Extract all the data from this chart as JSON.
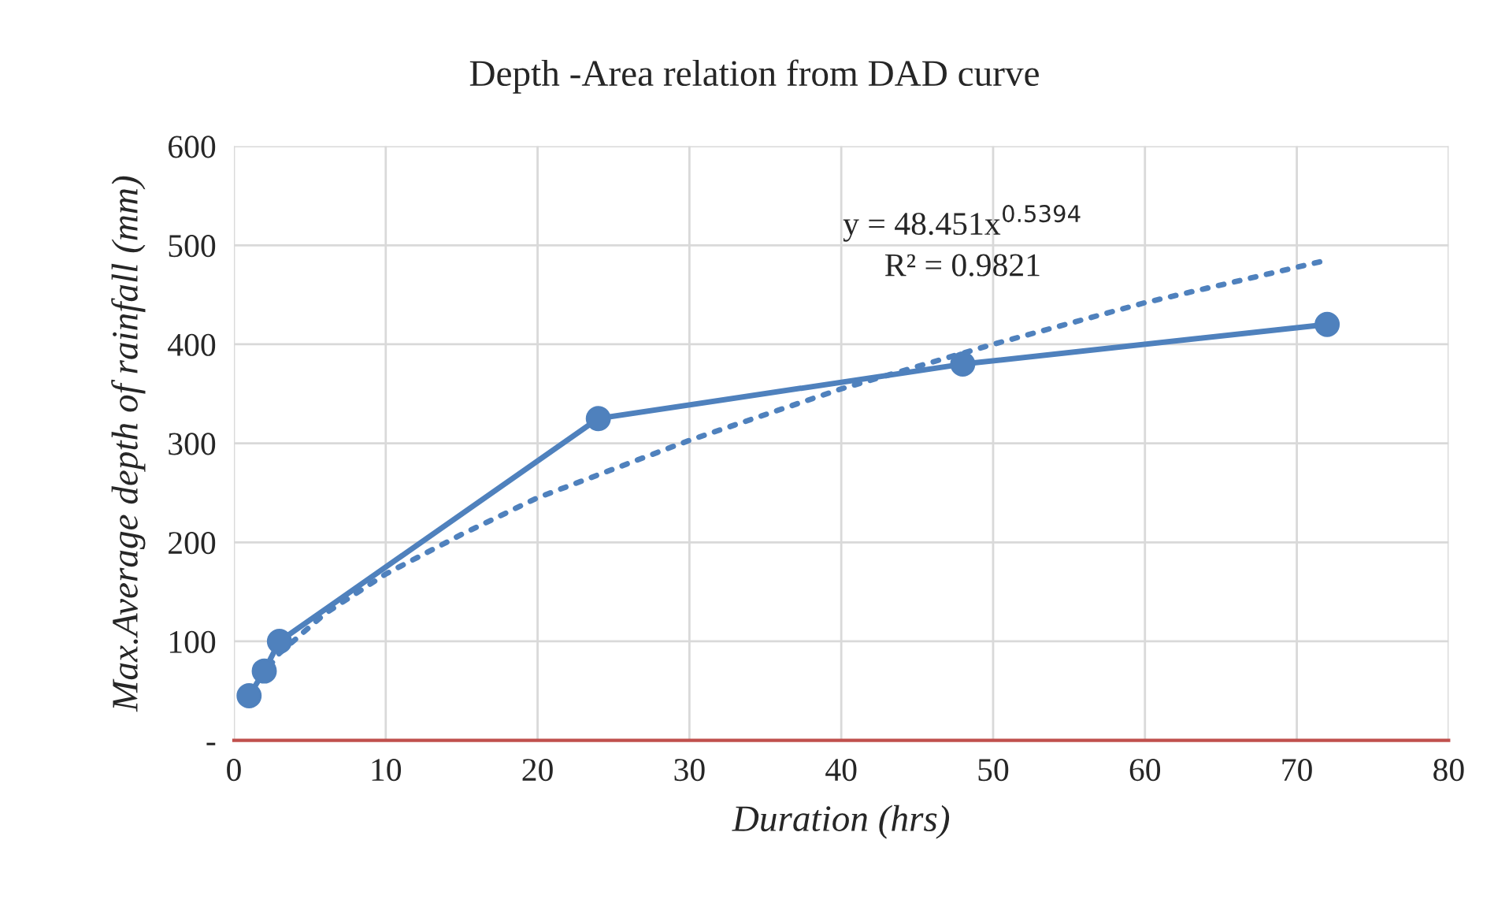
{
  "chart_data": {
    "type": "line",
    "title": "Depth -Area relation from DAD curve",
    "xlabel": "Duration (hrs)",
    "ylabel": "Max.Average depth of rainfall (mm)",
    "series": [
      {
        "color": "#4f81bd",
        "x": [
          1,
          2,
          3,
          24,
          48,
          72
        ],
        "values": [
          45,
          70,
          100,
          325,
          380,
          420
        ],
        "marker": "circle",
        "line_style": "solid"
      },
      {
        "color": "#4f81bd",
        "x": [
          1,
          3,
          6,
          10,
          15,
          20,
          30,
          40,
          50,
          60,
          72
        ],
        "values": [
          48,
          88,
          128,
          168,
          208,
          245,
          303,
          355,
          400,
          442,
          485
        ],
        "marker": "none",
        "line_style": "dotted"
      }
    ],
    "annotations": [
      "y = 48.451x$^{0.5394}$",
      "R² = 0.9821"
    ],
    "xlim": [
      0,
      80
    ],
    "xticks": [
      0,
      10,
      20,
      30,
      40,
      50,
      60,
      70,
      80
    ],
    "ylim": [
      0,
      600
    ],
    "yticks": [
      {
        "value": 0,
        "label": "-"
      },
      100,
      200,
      300,
      400,
      500,
      600
    ],
    "grid": true,
    "legend": false
  }
}
